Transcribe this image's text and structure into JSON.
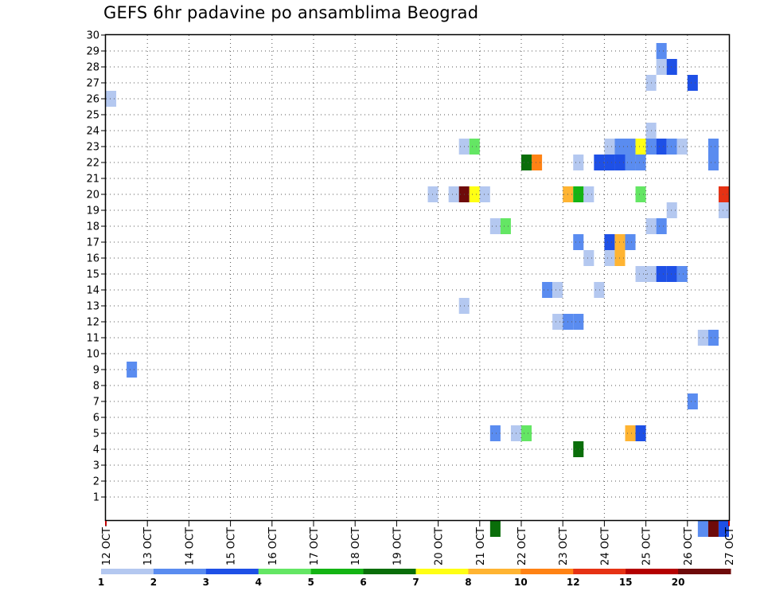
{
  "chart_data": {
    "type": "heatmap",
    "title": "GEFS 6hr padavine po ansamblima Beograd",
    "xlabel": "",
    "ylabel": "",
    "x_unit": "6-hour steps",
    "x_ticks": [
      "12 OCT",
      "13 OCT",
      "14 OCT",
      "15 OCT",
      "16 OCT",
      "17 OCT",
      "18 OCT",
      "19 OCT",
      "20 OCT",
      "21 OCT",
      "22 OCT",
      "23 OCT",
      "24 OCT",
      "25 OCT",
      "26 OCT",
      "27 OCT"
    ],
    "x_range_steps": [
      0,
      60
    ],
    "y_ticks": [
      "1",
      "2",
      "3",
      "4",
      "5",
      "6",
      "7",
      "8",
      "9",
      "10",
      "11",
      "12",
      "13",
      "14",
      "15",
      "16",
      "17",
      "18",
      "19",
      "20",
      "21",
      "22",
      "23",
      "24",
      "25",
      "26",
      "27",
      "28",
      "29",
      "30"
    ],
    "y_range": [
      0,
      30
    ],
    "grid": "dotted",
    "colorbar": {
      "labels": [
        "1",
        "2",
        "3",
        "4",
        "5",
        "6",
        "7",
        "8",
        "10",
        "12",
        "15",
        "20"
      ],
      "colors": [
        "#b4c8f0",
        "#5a8cf0",
        "#1e50e6",
        "#64e664",
        "#14b414",
        "#0a6e0a",
        "#ffff14",
        "#ffb432",
        "#ff8214",
        "#e63214",
        "#b40000",
        "#6e0a0a"
      ]
    },
    "cells": [
      {
        "x": 0.5,
        "y": 26,
        "c": 0
      },
      {
        "x": 2.5,
        "y": 9,
        "c": 1
      },
      {
        "x": 31.5,
        "y": 20,
        "c": 0
      },
      {
        "x": 33.5,
        "y": 20,
        "c": 0
      },
      {
        "x": 34.5,
        "y": 20,
        "c": 11
      },
      {
        "x": 35.5,
        "y": 20,
        "c": 6
      },
      {
        "x": 36.5,
        "y": 20,
        "c": 0
      },
      {
        "x": 34.5,
        "y": 23,
        "c": 0
      },
      {
        "x": 35.5,
        "y": 23,
        "c": 3
      },
      {
        "x": 34.5,
        "y": 13,
        "c": 0
      },
      {
        "x": 37.5,
        "y": 18,
        "c": 0
      },
      {
        "x": 38.5,
        "y": 18,
        "c": 3
      },
      {
        "x": 37.5,
        "y": 5,
        "c": 1
      },
      {
        "x": 37.5,
        "y": -1,
        "c": 5
      },
      {
        "x": 39.5,
        "y": 5,
        "c": 0
      },
      {
        "x": 40.5,
        "y": 5,
        "c": 3
      },
      {
        "x": 40.5,
        "y": 22,
        "c": 5
      },
      {
        "x": 41.5,
        "y": 22,
        "c": 8
      },
      {
        "x": 42.5,
        "y": 14,
        "c": 1
      },
      {
        "x": 43.5,
        "y": 14,
        "c": 0
      },
      {
        "x": 43.5,
        "y": 12,
        "c": 0
      },
      {
        "x": 44.5,
        "y": 12,
        "c": 1
      },
      {
        "x": 45.5,
        "y": 12,
        "c": 1
      },
      {
        "x": 44.5,
        "y": 20,
        "c": 7
      },
      {
        "x": 45.5,
        "y": 20,
        "c": 4
      },
      {
        "x": 46.5,
        "y": 20,
        "c": 0
      },
      {
        "x": 45.5,
        "y": 22,
        "c": 0
      },
      {
        "x": 45.5,
        "y": 17,
        "c": 1
      },
      {
        "x": 45.5,
        "y": 4,
        "c": 5
      },
      {
        "x": 46.5,
        "y": 16,
        "c": 0
      },
      {
        "x": 47.5,
        "y": 14,
        "c": 0
      },
      {
        "x": 47.5,
        "y": 22,
        "c": 2
      },
      {
        "x": 48.5,
        "y": 22,
        "c": 2
      },
      {
        "x": 49.5,
        "y": 22,
        "c": 2
      },
      {
        "x": 48.5,
        "y": 23,
        "c": 0
      },
      {
        "x": 49.5,
        "y": 23,
        "c": 1
      },
      {
        "x": 50.5,
        "y": 23,
        "c": 1
      },
      {
        "x": 51.5,
        "y": 23,
        "c": 6
      },
      {
        "x": 50.5,
        "y": 22,
        "c": 1
      },
      {
        "x": 51.5,
        "y": 22,
        "c": 1
      },
      {
        "x": 48.5,
        "y": 17,
        "c": 2
      },
      {
        "x": 49.5,
        "y": 17,
        "c": 7
      },
      {
        "x": 50.5,
        "y": 17,
        "c": 1
      },
      {
        "x": 48.5,
        "y": 16,
        "c": 0
      },
      {
        "x": 49.5,
        "y": 16,
        "c": 7
      },
      {
        "x": 51.5,
        "y": 15,
        "c": 0
      },
      {
        "x": 52.5,
        "y": 15,
        "c": 0
      },
      {
        "x": 53.5,
        "y": 15,
        "c": 2
      },
      {
        "x": 54.5,
        "y": 15,
        "c": 2
      },
      {
        "x": 55.5,
        "y": 15,
        "c": 1
      },
      {
        "x": 51.5,
        "y": 20,
        "c": 3
      },
      {
        "x": 50.5,
        "y": 5,
        "c": 7
      },
      {
        "x": 51.5,
        "y": 5,
        "c": 2
      },
      {
        "x": 52.5,
        "y": 23,
        "c": 1
      },
      {
        "x": 53.5,
        "y": 23,
        "c": 2
      },
      {
        "x": 54.5,
        "y": 23,
        "c": 1
      },
      {
        "x": 55.5,
        "y": 23,
        "c": 0
      },
      {
        "x": 52.5,
        "y": 24,
        "c": 0
      },
      {
        "x": 52.5,
        "y": 27,
        "c": 0
      },
      {
        "x": 52.5,
        "y": 18,
        "c": 0
      },
      {
        "x": 53.5,
        "y": 18,
        "c": 1
      },
      {
        "x": 54.5,
        "y": 19,
        "c": 0
      },
      {
        "x": 53.5,
        "y": 29,
        "c": 1
      },
      {
        "x": 53.5,
        "y": 28,
        "c": 0
      },
      {
        "x": 54.5,
        "y": 28,
        "c": 2
      },
      {
        "x": 56.5,
        "y": 27,
        "c": 2
      },
      {
        "x": 56.5,
        "y": 7,
        "c": 1
      },
      {
        "x": 57.5,
        "y": 11,
        "c": 0
      },
      {
        "x": 58.5,
        "y": 11,
        "c": 1
      },
      {
        "x": 58.5,
        "y": 23,
        "c": 1
      },
      {
        "x": 58.5,
        "y": 22,
        "c": 1
      },
      {
        "x": 59.5,
        "y": 20,
        "c": 9
      },
      {
        "x": 59.5,
        "y": 19,
        "c": 0
      },
      {
        "x": 57.5,
        "y": -1,
        "c": 1
      },
      {
        "x": 58.5,
        "y": -1,
        "c": 11
      },
      {
        "x": 59.5,
        "y": -1,
        "c": 2
      }
    ]
  }
}
